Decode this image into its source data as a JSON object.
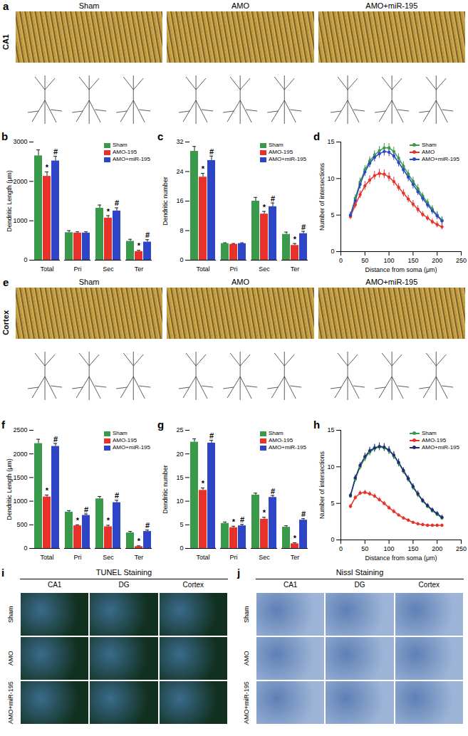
{
  "image_panels": [
    {
      "panel_label": "a",
      "row_label": "CA1",
      "columns": [
        "Sham",
        "AMO",
        "AMO+miR-195"
      ]
    },
    {
      "panel_label": "e",
      "row_label": "Cortex",
      "columns": [
        "Sham",
        "AMO",
        "AMO+miR-195"
      ]
    },
    {
      "panel_label": "i",
      "title": "TUNEL Staining",
      "columns": [
        "CA1",
        "DG",
        "Cortex"
      ],
      "rows": [
        "Sham",
        "AMO",
        "AMO+miR-195"
      ]
    },
    {
      "panel_label": "j",
      "title": "Nissl Staining",
      "columns": [
        "CA1",
        "DG",
        "Cortex"
      ],
      "rows": [
        "Sham",
        "AMO",
        "AMO+miR-195"
      ]
    }
  ],
  "chart_data": [
    {
      "panel_label": "b",
      "type": "bar",
      "y_label": "Dendritic Length (μm)",
      "categories": [
        "Total",
        "Pri",
        "Sec",
        "Ter"
      ],
      "series": [
        {
          "name": "Sham",
          "color": "#3a9a4c",
          "values": [
            2650,
            700,
            1320,
            480
          ],
          "errors": [
            150,
            50,
            80,
            50
          ]
        },
        {
          "name": "AMO-195",
          "color": "#e8312a",
          "values": [
            2130,
            690,
            1070,
            220
          ],
          "errors": [
            110,
            30,
            60,
            30
          ],
          "annotations": [
            "*",
            null,
            "*",
            "*"
          ]
        },
        {
          "name": "AMO+miR-195",
          "color": "#2f45c8",
          "values": [
            2520,
            690,
            1250,
            460
          ],
          "errors": [
            120,
            30,
            80,
            60
          ],
          "annotations": [
            "#",
            null,
            "#",
            "#"
          ]
        }
      ],
      "ylim": [
        0,
        3000
      ],
      "yticks": [
        0,
        1000,
        2000,
        3000
      ],
      "legend": "top-right"
    },
    {
      "panel_label": "c",
      "type": "bar",
      "y_label": "Dendritic number",
      "categories": [
        "Total",
        "Pri",
        "Sec",
        "Ter"
      ],
      "series": [
        {
          "name": "Sham",
          "color": "#3a9a4c",
          "values": [
            29.5,
            4.5,
            16,
            7
          ],
          "errors": [
            1.3,
            0.2,
            1.0,
            0.6
          ]
        },
        {
          "name": "AMO-195",
          "color": "#e8312a",
          "values": [
            22.5,
            4.3,
            12.5,
            4
          ],
          "errors": [
            1.0,
            0.2,
            0.7,
            0.5
          ],
          "annotations": [
            "*",
            null,
            "*",
            "*"
          ]
        },
        {
          "name": "AMO+miR-195",
          "color": "#2f45c8",
          "values": [
            27,
            4.5,
            14.5,
            7.2
          ],
          "errors": [
            1.2,
            0.2,
            1.0,
            0.6
          ],
          "annotations": [
            "#",
            null,
            "#",
            "#"
          ]
        }
      ],
      "ylim": [
        0,
        32
      ],
      "yticks": [
        0,
        8,
        16,
        24,
        32
      ],
      "legend": "top-right"
    },
    {
      "panel_label": "d",
      "type": "line",
      "x_label": "Distance from soma (μm)",
      "y_label": "Number of intersections",
      "x": [
        20,
        30,
        40,
        50,
        60,
        70,
        80,
        90,
        100,
        110,
        120,
        130,
        140,
        150,
        160,
        170,
        180,
        190,
        200,
        210
      ],
      "series": [
        {
          "name": "Sham",
          "color": "#3a9a4c",
          "marker": "circle",
          "values": [
            5.0,
            7.3,
            9.5,
            11.2,
            12.4,
            13.2,
            13.8,
            14.2,
            14.2,
            13.7,
            12.8,
            11.7,
            10.6,
            9.6,
            8.6,
            7.6,
            6.7,
            5.8,
            5.0,
            4.3
          ],
          "errors": [
            0.4,
            0.5,
            0.6,
            0.6,
            0.6,
            0.6,
            0.6,
            0.6,
            0.6,
            0.6,
            0.6,
            0.6,
            0.6,
            0.6,
            0.6,
            0.5,
            0.5,
            0.5,
            0.5,
            0.5
          ]
        },
        {
          "name": "AMO",
          "color": "#e8312a",
          "marker": "circle",
          "values": [
            4.8,
            6.4,
            7.8,
            9.0,
            9.8,
            10.4,
            10.7,
            10.6,
            10.2,
            9.6,
            8.8,
            8.0,
            7.2,
            6.5,
            5.8,
            5.1,
            4.6,
            4.1,
            3.7,
            3.4
          ],
          "errors": [
            0.4,
            0.5,
            0.5,
            0.6,
            0.6,
            0.6,
            0.6,
            0.6,
            0.6,
            0.6,
            0.5,
            0.5,
            0.5,
            0.5,
            0.5,
            0.4,
            0.4,
            0.4,
            0.4,
            0.4
          ]
        },
        {
          "name": "AMO+miR-195",
          "color": "#2f45c8",
          "marker": "circle",
          "values": [
            5.0,
            7.0,
            9.2,
            10.9,
            12.1,
            12.9,
            13.4,
            13.7,
            13.6,
            13.1,
            12.2,
            11.2,
            10.2,
            9.2,
            8.2,
            7.3,
            6.4,
            5.6,
            4.9,
            4.2
          ],
          "errors": [
            0.4,
            0.5,
            0.6,
            0.6,
            0.6,
            0.6,
            0.6,
            0.6,
            0.6,
            0.6,
            0.6,
            0.6,
            0.6,
            0.6,
            0.5,
            0.5,
            0.5,
            0.5,
            0.5,
            0.5
          ]
        }
      ],
      "xlim": [
        0,
        250
      ],
      "xticks": [
        0,
        50,
        100,
        150,
        200,
        250
      ],
      "ylim": [
        0,
        15
      ],
      "yticks": [
        0,
        5,
        10,
        15
      ],
      "legend": "top-right"
    },
    {
      "panel_label": "f",
      "type": "bar",
      "y_label": "Dendritic Length (μm)",
      "categories": [
        "Total",
        "Pri",
        "Sec",
        "Ter"
      ],
      "series": [
        {
          "name": "Sham",
          "color": "#3a9a4c",
          "values": [
            2220,
            770,
            1050,
            330
          ],
          "errors": [
            90,
            30,
            50,
            30
          ]
        },
        {
          "name": "AMO-195",
          "color": "#e8312a",
          "values": [
            1090,
            480,
            460,
            40
          ],
          "errors": [
            40,
            20,
            30,
            15
          ],
          "annotations": [
            "*",
            "*",
            "*",
            "*"
          ]
        },
        {
          "name": "AMO+miR-195",
          "color": "#2f45c8",
          "values": [
            2160,
            700,
            970,
            360
          ],
          "errors": [
            60,
            30,
            50,
            30
          ],
          "annotations": [
            "#",
            "#",
            "#",
            "#"
          ]
        }
      ],
      "ylim": [
        0,
        2500
      ],
      "yticks": [
        0,
        500,
        1000,
        1500,
        2000,
        2500
      ],
      "legend": "top-right"
    },
    {
      "panel_label": "g",
      "type": "bar",
      "y_label": "Dendritic number",
      "categories": [
        "Total",
        "Pri",
        "Sec",
        "Ter"
      ],
      "series": [
        {
          "name": "Sham",
          "color": "#3a9a4c",
          "values": [
            22.5,
            5.3,
            11.3,
            4.5
          ],
          "errors": [
            0.7,
            0.3,
            0.4,
            0.3
          ]
        },
        {
          "name": "AMO-195",
          "color": "#e8312a",
          "values": [
            12.3,
            4.4,
            6.2,
            1
          ],
          "errors": [
            0.5,
            0.3,
            0.4,
            0.2
          ],
          "annotations": [
            "*",
            "*",
            "*",
            "*"
          ]
        },
        {
          "name": "AMO+miR-195",
          "color": "#2f45c8",
          "values": [
            22.3,
            4.8,
            10.8,
            6.0
          ],
          "errors": [
            0.6,
            0.3,
            0.4,
            0.3
          ],
          "annotations": [
            "#",
            "#",
            "#",
            "#"
          ]
        }
      ],
      "ylim": [
        0,
        25
      ],
      "yticks": [
        0,
        5,
        10,
        15,
        20,
        25
      ],
      "legend": "top-right"
    },
    {
      "panel_label": "h",
      "type": "line",
      "x_label": "Distance from soma (μm)",
      "y_label": "Number of intersections",
      "x": [
        20,
        30,
        40,
        50,
        60,
        70,
        80,
        90,
        100,
        110,
        120,
        130,
        140,
        150,
        160,
        170,
        180,
        190,
        200,
        210
      ],
      "series": [
        {
          "name": "Sham",
          "color": "#3a9a4c",
          "marker": "circle",
          "values": [
            6.0,
            8.3,
            10.0,
            11.2,
            12.0,
            12.5,
            12.7,
            12.6,
            12.2,
            11.5,
            10.5,
            9.4,
            8.3,
            7.2,
            6.2,
            5.3,
            4.6,
            4.0,
            3.5,
            3.0
          ],
          "errors": [
            0.3,
            0.4,
            0.4,
            0.5,
            0.5,
            0.5,
            0.5,
            0.5,
            0.5,
            0.5,
            0.5,
            0.4,
            0.4,
            0.4,
            0.4,
            0.3,
            0.3,
            0.3,
            0.3,
            0.3
          ]
        },
        {
          "name": "AMO-195",
          "color": "#e8312a",
          "marker": "circle",
          "values": [
            4.6,
            5.8,
            6.4,
            6.5,
            6.3,
            6.0,
            5.5,
            5.0,
            4.4,
            3.9,
            3.4,
            3.0,
            2.7,
            2.4,
            2.2,
            2.1,
            2.0,
            2.0,
            2.0,
            2.0
          ],
          "errors": [
            0.3,
            0.3,
            0.3,
            0.3,
            0.3,
            0.3,
            0.3,
            0.3,
            0.3,
            0.3,
            0.2,
            0.2,
            0.2,
            0.2,
            0.2,
            0.2,
            0.2,
            0.2,
            0.2,
            0.2
          ]
        },
        {
          "name": "AMO+miR-195",
          "color": "#1f2a7a",
          "marker": "circle",
          "values": [
            6.1,
            8.5,
            10.2,
            11.4,
            12.2,
            12.6,
            12.8,
            12.7,
            12.3,
            11.6,
            10.6,
            9.5,
            8.4,
            7.3,
            6.3,
            5.4,
            4.7,
            4.1,
            3.6,
            3.1
          ],
          "errors": [
            0.3,
            0.4,
            0.4,
            0.5,
            0.5,
            0.5,
            0.5,
            0.5,
            0.5,
            0.5,
            0.5,
            0.4,
            0.4,
            0.4,
            0.4,
            0.3,
            0.3,
            0.3,
            0.3,
            0.3
          ]
        }
      ],
      "xlim": [
        0,
        250
      ],
      "xticks": [
        0,
        50,
        100,
        150,
        200,
        250
      ],
      "ylim": [
        0,
        15
      ],
      "yticks": [
        0,
        5,
        10,
        15
      ],
      "legend": "top-right"
    }
  ]
}
